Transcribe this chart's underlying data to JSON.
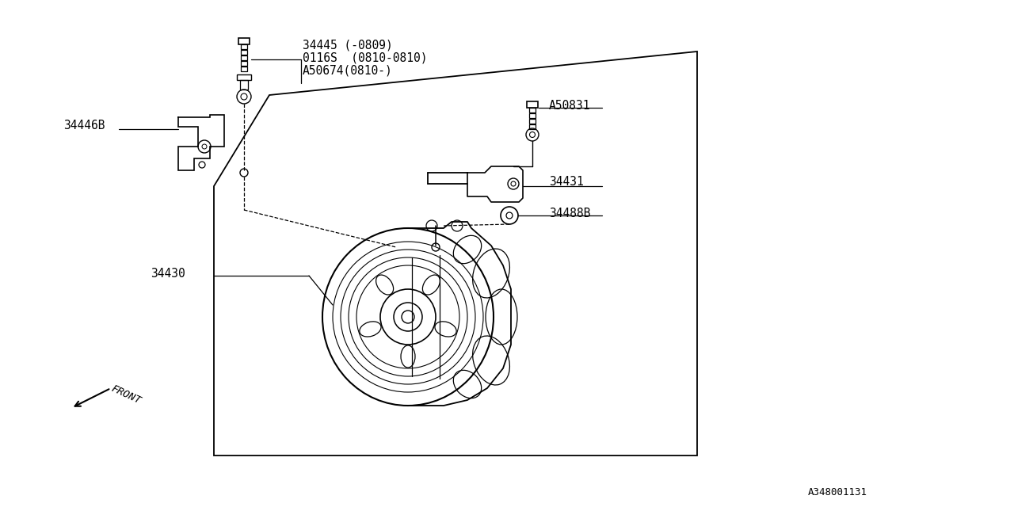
{
  "bg_color": "#ffffff",
  "line_color": "#000000",
  "text_color": "#000000",
  "figsize": [
    12.8,
    6.4
  ],
  "dpi": 100,
  "labels": {
    "34445": "34445 (-0809)",
    "0116S": "0116S  (0810-0810)",
    "A50674": "A50674(0810-)",
    "34446B": "34446B",
    "A50831": "A50831",
    "34431": "34431",
    "34488B": "34488B",
    "34430": "34430",
    "docnum": "A348001131",
    "front": "FRONT"
  }
}
